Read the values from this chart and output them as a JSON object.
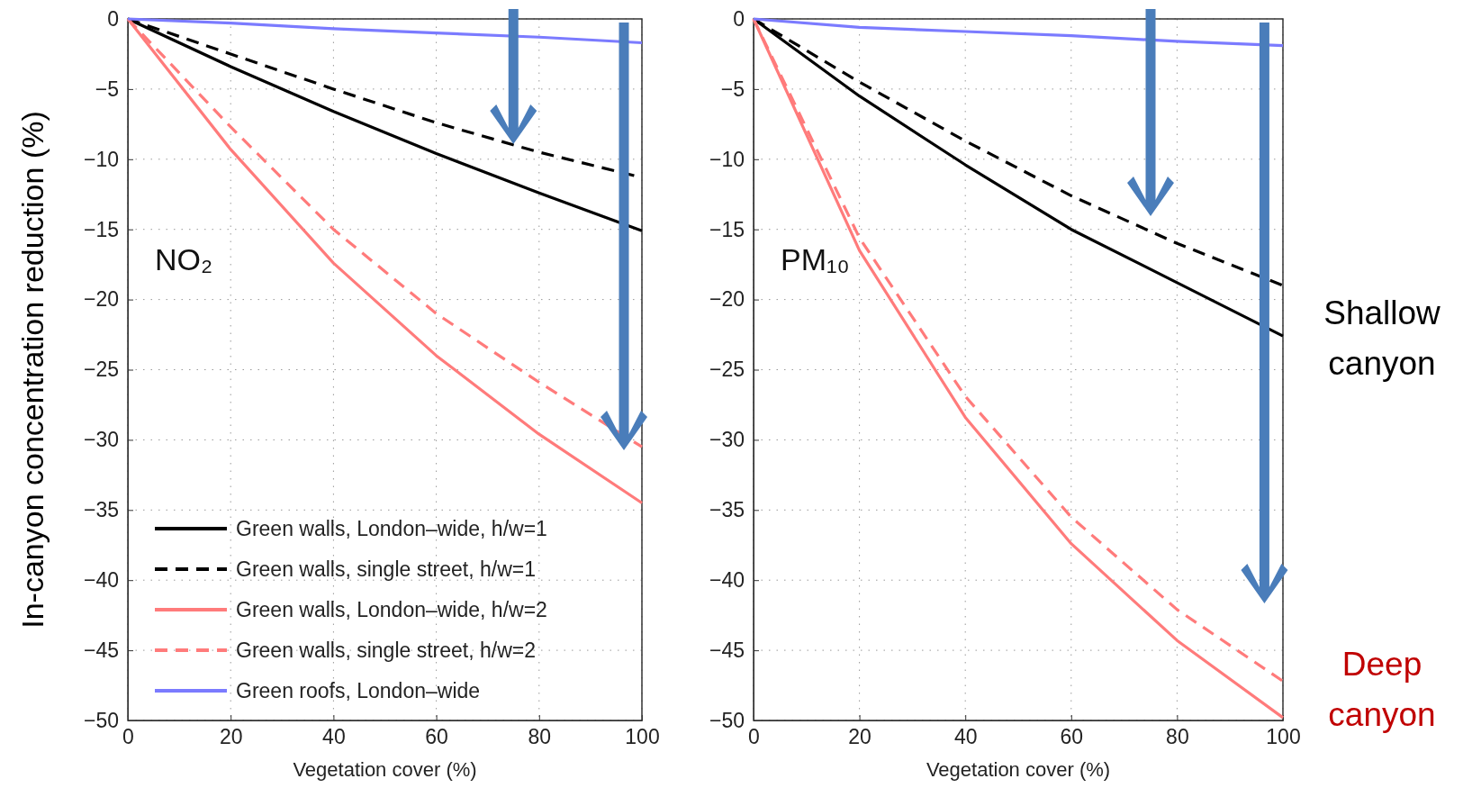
{
  "chart_data": [
    {
      "type": "line",
      "ylabel": "In-canyon concentration reduction (%)",
      "xlabel": "Vegetation cover (%)",
      "annotations": [
        "NO₂"
      ],
      "x": [
        0,
        20,
        40,
        60,
        80,
        100
      ],
      "xlim": [
        0,
        100
      ],
      "xticks": [
        0,
        20,
        40,
        60,
        80,
        100
      ],
      "ylim": [
        -50,
        0
      ],
      "yticks": [
        -50,
        -45,
        -40,
        -35,
        -30,
        -25,
        -20,
        -15,
        -10,
        -5,
        0
      ],
      "grid": true,
      "legend": "bottom left",
      "series": [
        {
          "name": "Green walls, London–wide, h/w=1",
          "color": "#000000",
          "line_style": "solid",
          "values": [
            0,
            -3.4,
            -6.6,
            -9.6,
            -12.4,
            -15.1
          ]
        },
        {
          "name": "Green walls, single street, h/w=1",
          "color": "#000000",
          "line_style": "dashed",
          "values": [
            0,
            -2.5,
            -5,
            -7.4,
            -9.5,
            -11.3
          ]
        },
        {
          "name": "Green walls, London–wide, h/w=2",
          "color": "#ff7b7b",
          "line_style": "solid",
          "values": [
            0,
            -9.3,
            -17.4,
            -24,
            -29.6,
            -34.5
          ]
        },
        {
          "name": "Green walls, single street, h/w=2",
          "color": "#ff7b7b",
          "line_style": "dashed",
          "values": [
            0,
            -7.7,
            -15,
            -21,
            -25.9,
            -30.5
          ]
        },
        {
          "name": "Green roofs, London–wide",
          "color": "#7b7bff",
          "line_style": "solid",
          "values": [
            0,
            -0.3,
            -0.7,
            -1,
            -1.3,
            -1.7
          ]
        }
      ]
    },
    {
      "type": "line",
      "xlabel": "Vegetation cover (%)",
      "annotations": [
        "PM₁₀",
        "Shallow canyon",
        "Deep canyon"
      ],
      "x": [
        0,
        20,
        40,
        60,
        80,
        100
      ],
      "xlim": [
        0,
        100
      ],
      "xticks": [
        0,
        20,
        40,
        60,
        80,
        100
      ],
      "ylim": [
        -50,
        0
      ],
      "yticks": [
        -50,
        -45,
        -40,
        -35,
        -30,
        -25,
        -20,
        -15,
        -10,
        -5,
        0
      ],
      "grid": true,
      "series": [
        {
          "color": "#000000",
          "line_style": "solid",
          "values": [
            0,
            -5.5,
            -10.4,
            -15,
            -18.8,
            -22.6
          ]
        },
        {
          "color": "#000000",
          "line_style": "dashed",
          "values": [
            0,
            -4.5,
            -8.7,
            -12.6,
            -16,
            -19
          ]
        },
        {
          "color": "#ff7b7b",
          "line_style": "solid",
          "values": [
            0,
            -16.5,
            -28.4,
            -37.4,
            -44.3,
            -49.8
          ]
        },
        {
          "color": "#ff7b7b",
          "line_style": "dashed",
          "values": [
            0,
            -15.6,
            -26.9,
            -35.5,
            -42.1,
            -47.2
          ]
        },
        {
          "color": "#7b7bff",
          "line_style": "solid",
          "values": [
            0,
            -0.6,
            -0.9,
            -1.2,
            -1.6,
            -1.9
          ]
        }
      ]
    }
  ]
}
